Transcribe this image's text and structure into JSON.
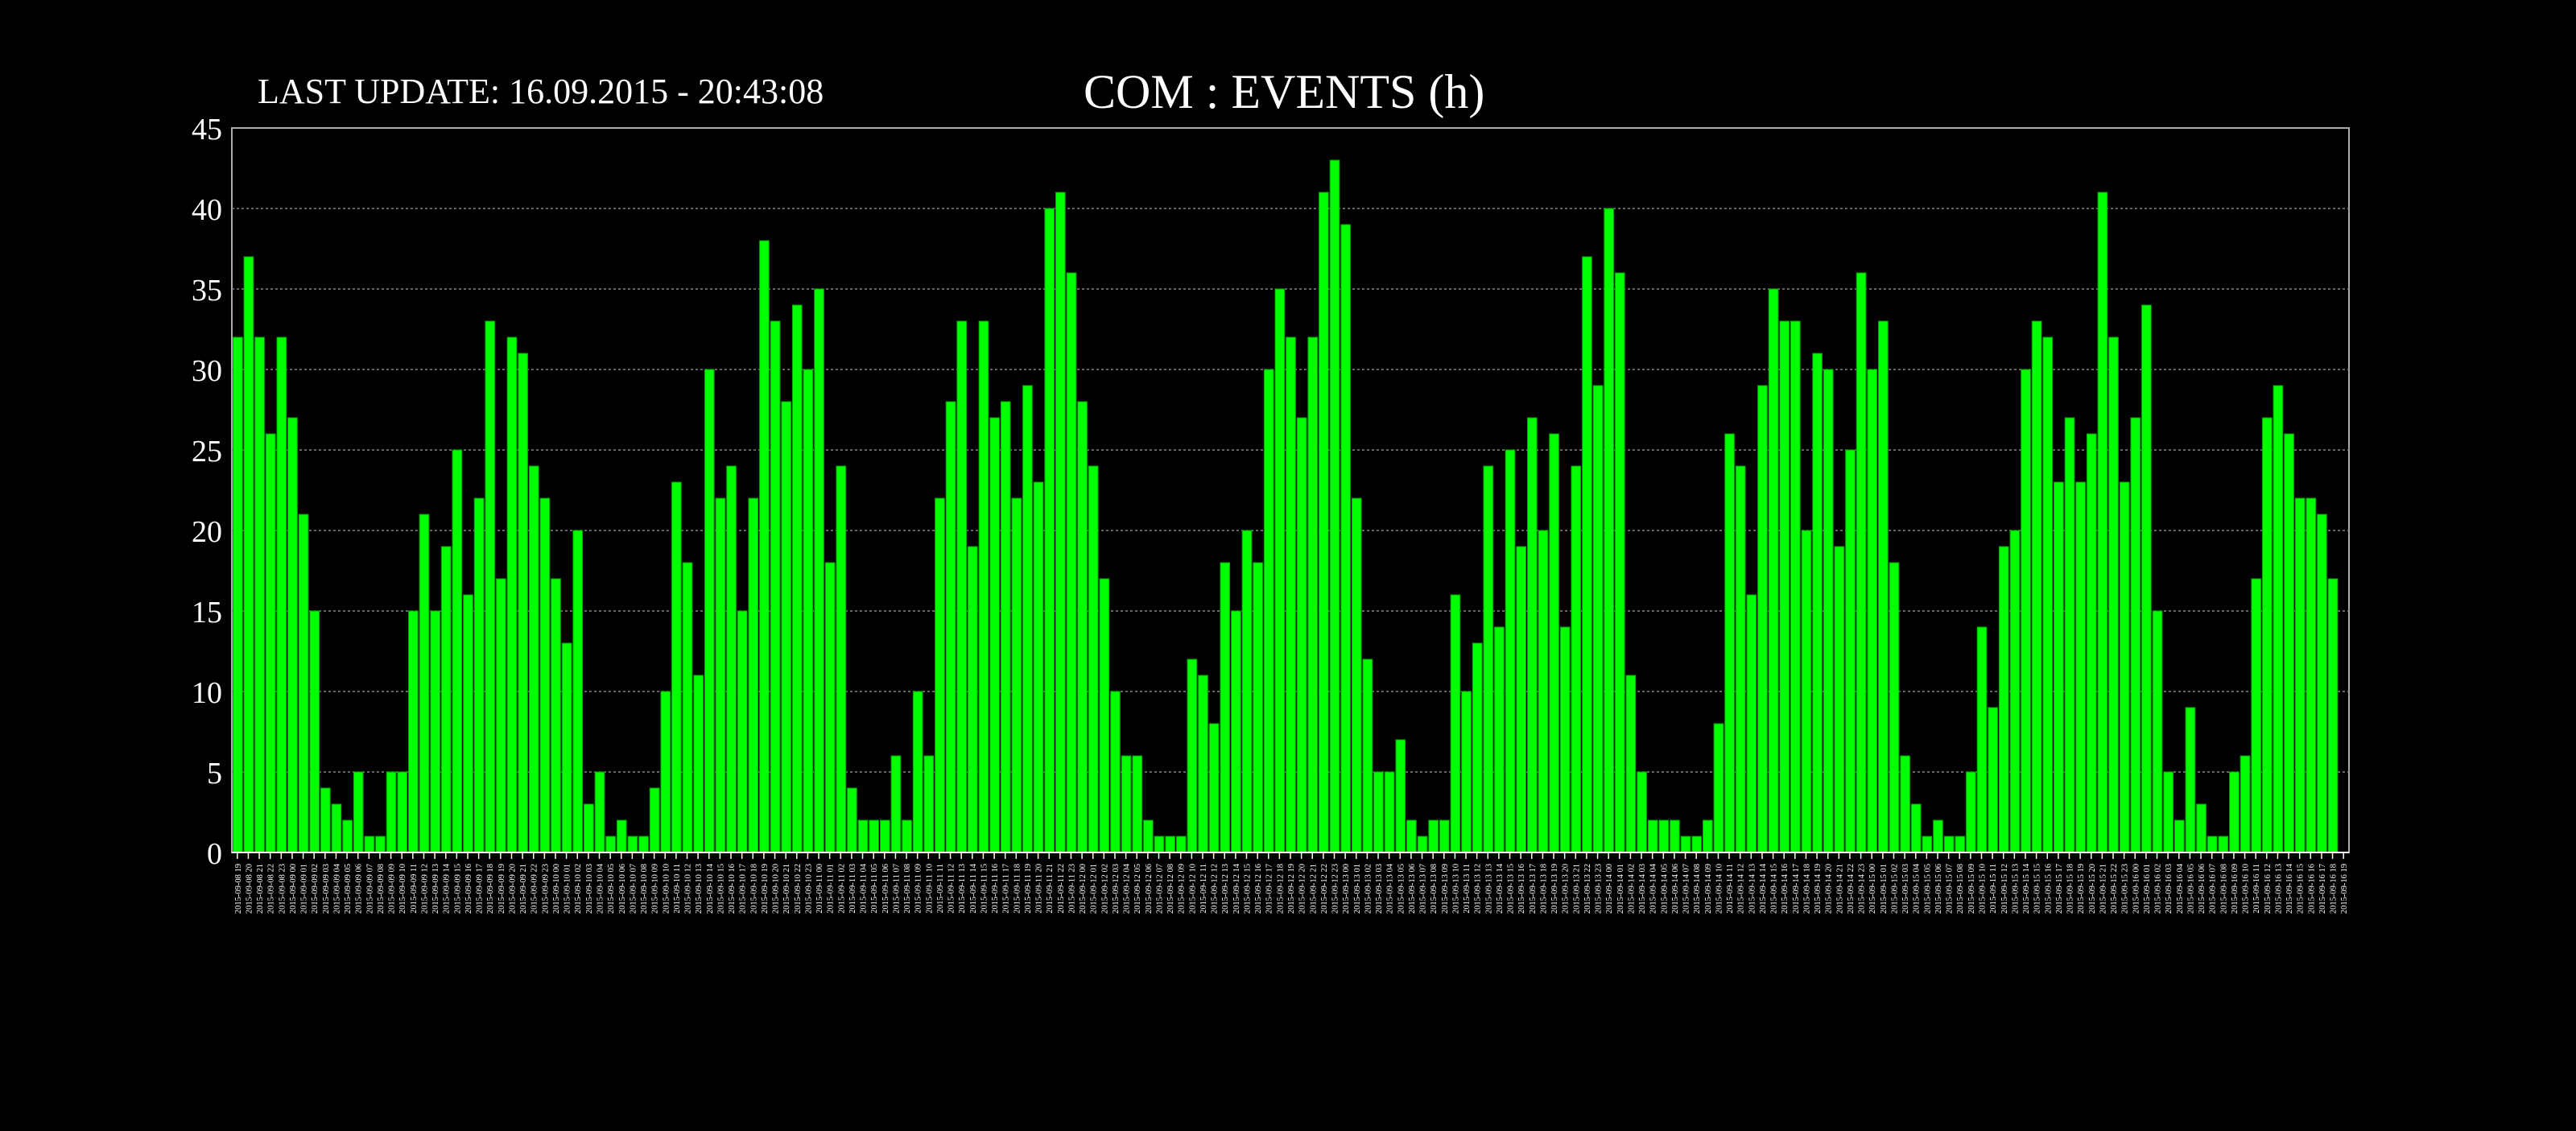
{
  "header": {
    "last_update": "LAST UPDATE: 16.09.2015 - 20:43:08",
    "title": "COM : EVENTS (h)"
  },
  "chart_data": {
    "type": "bar",
    "title": "COM : EVENTS (h)",
    "xlabel": "",
    "ylabel": "",
    "ylim": [
      0,
      45
    ],
    "yticks": [
      0,
      5,
      10,
      15,
      20,
      25,
      30,
      35,
      40,
      45
    ],
    "grid": true,
    "legend": "none",
    "bar_color": "#00ff00",
    "background": "#000000",
    "x_start": "2015-09-08 19:00",
    "x_end": "2015-09-16 19:00",
    "x_step_hours": 1,
    "values": [
      32,
      37,
      32,
      26,
      32,
      27,
      21,
      15,
      4,
      3,
      2,
      5,
      1,
      1,
      5,
      5,
      15,
      21,
      15,
      19,
      25,
      16,
      22,
      33,
      17,
      32,
      31,
      24,
      22,
      17,
      13,
      20,
      3,
      5,
      1,
      2,
      1,
      1,
      4,
      10,
      23,
      18,
      11,
      30,
      22,
      24,
      15,
      22,
      38,
      33,
      28,
      34,
      30,
      35,
      18,
      24,
      4,
      2,
      2,
      2,
      6,
      2,
      10,
      6,
      22,
      28,
      33,
      19,
      33,
      27,
      28,
      22,
      29,
      23,
      40,
      41,
      36,
      28,
      24,
      17,
      10,
      6,
      6,
      2,
      1,
      1,
      1,
      12,
      11,
      8,
      18,
      15,
      20,
      18,
      30,
      35,
      32,
      27,
      32,
      41,
      43,
      39,
      22,
      12,
      5,
      5,
      7,
      2,
      1,
      2,
      2,
      16,
      10,
      13,
      24,
      14,
      25,
      19,
      27,
      20,
      26,
      14,
      24,
      37,
      29,
      40,
      36,
      11,
      5,
      2,
      2,
      2,
      1,
      1,
      2,
      8,
      26,
      24,
      16,
      29,
      35,
      33,
      33,
      20,
      31,
      30,
      19,
      25,
      36,
      30,
      33,
      18,
      6,
      3,
      1,
      2,
      1,
      1,
      5,
      14,
      9,
      19,
      20,
      30,
      33,
      32,
      23,
      27,
      23,
      26,
      41,
      32,
      23,
      27,
      34,
      15,
      5,
      2,
      9,
      3,
      1,
      1,
      5,
      6,
      17,
      27,
      29,
      26,
      22,
      22,
      21,
      17
    ]
  }
}
